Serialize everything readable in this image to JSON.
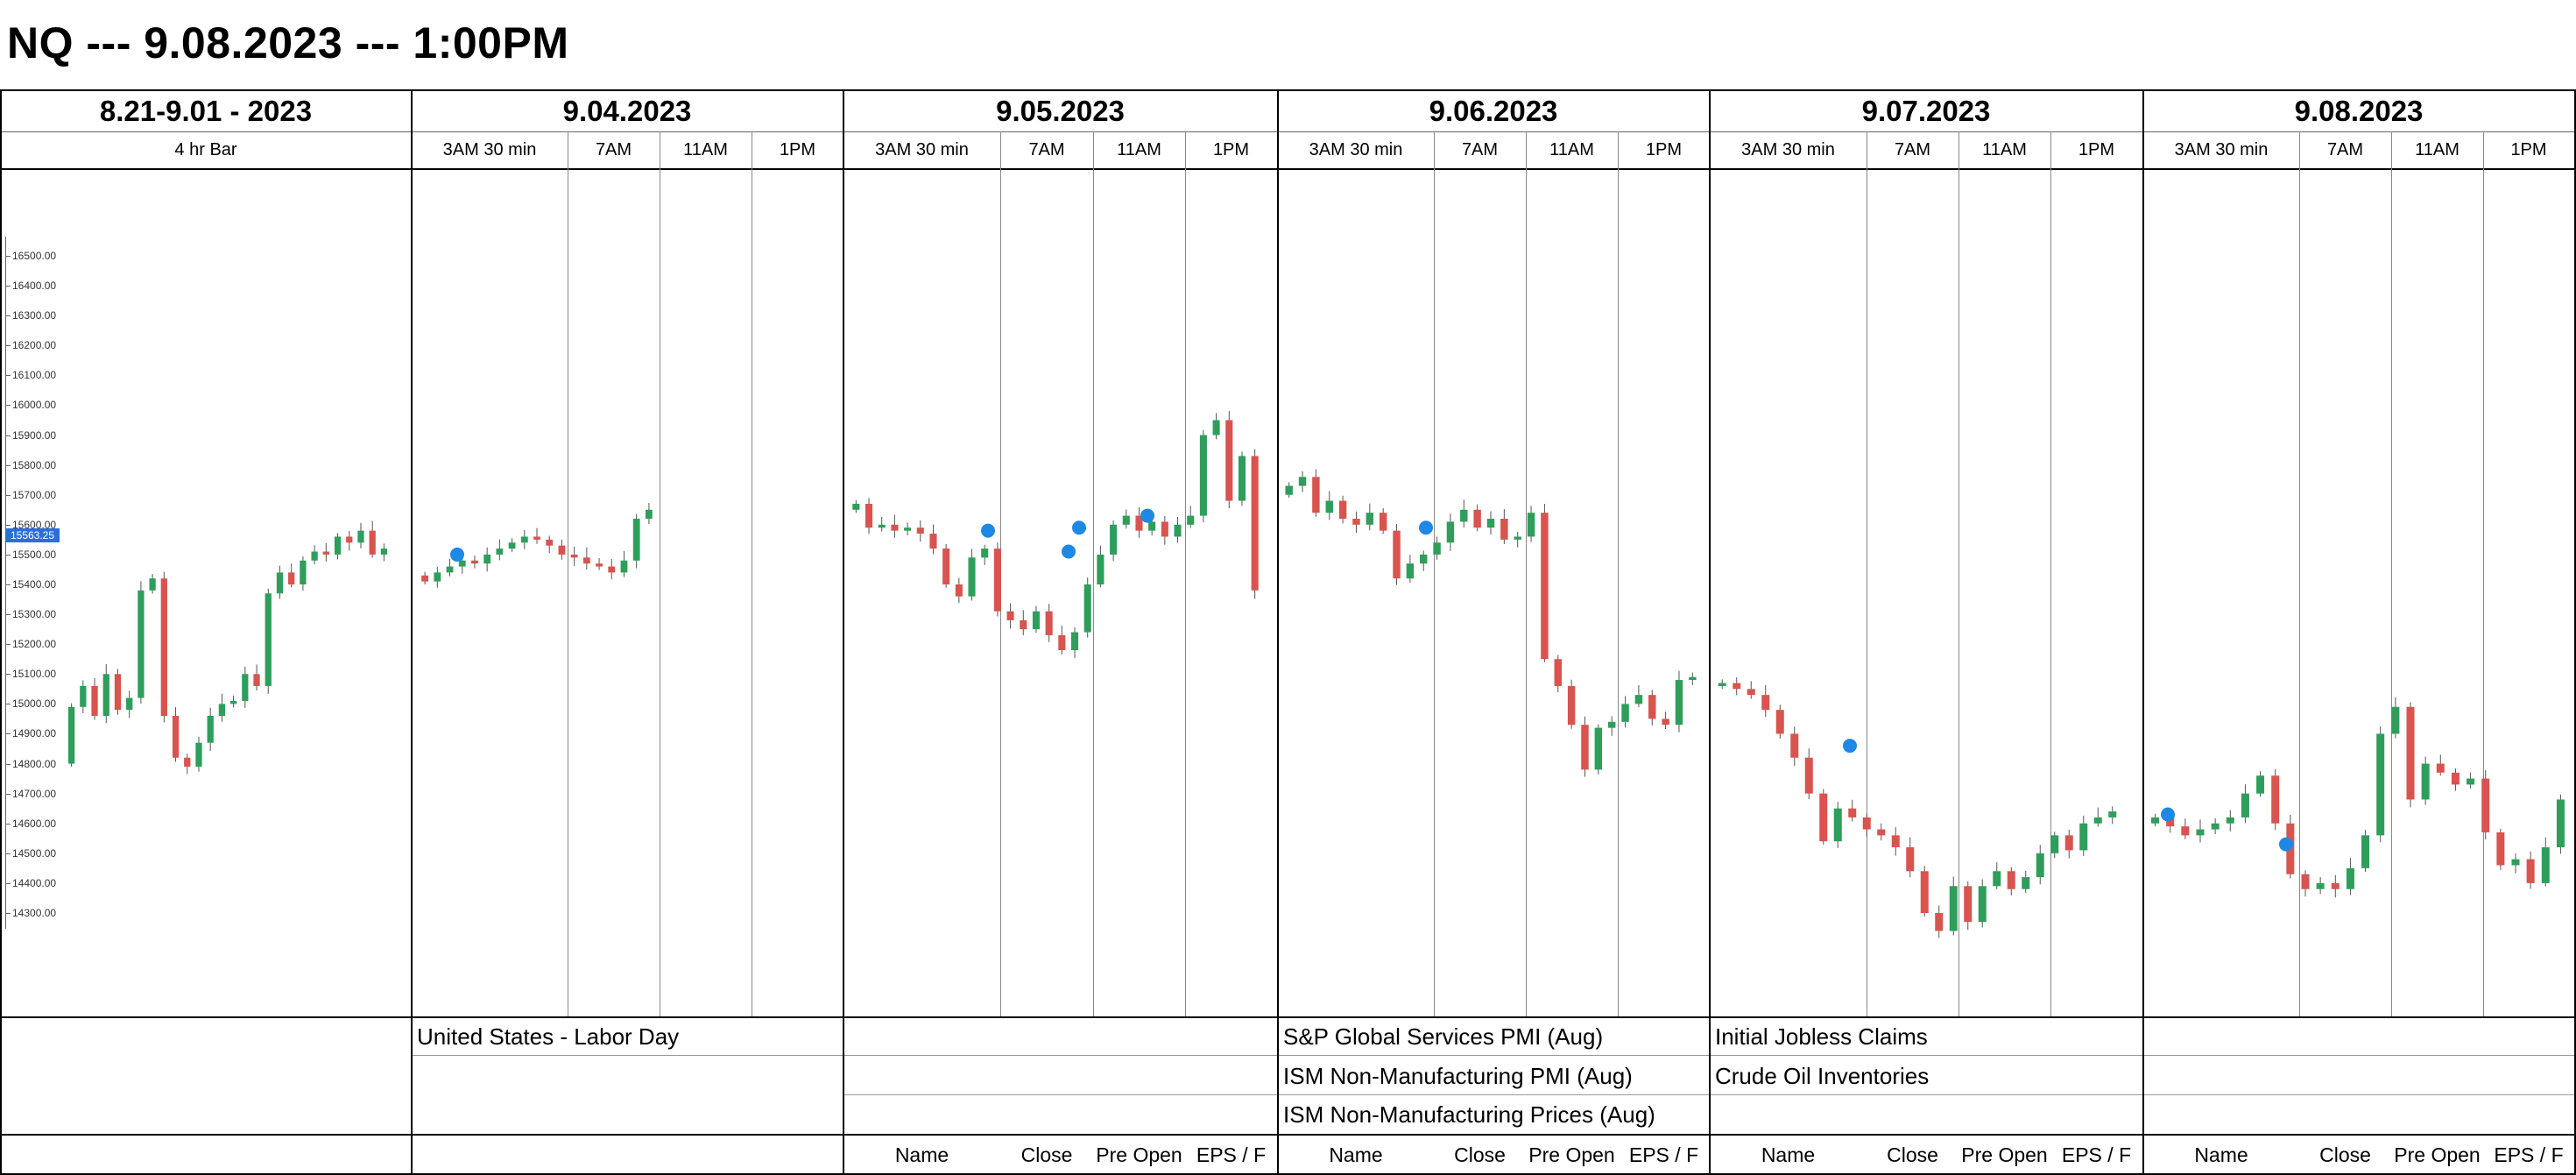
{
  "title": "NQ --- 9.08.2023 --- 1:00PM",
  "days": [
    {
      "label": "8.21-9.01 - 2023",
      "sub": [
        "4 hr Bar"
      ]
    },
    {
      "label": "9.04.2023",
      "sub": [
        "3AM 30 min",
        "7AM",
        "11AM",
        "1PM"
      ]
    },
    {
      "label": "9.05.2023",
      "sub": [
        "3AM 30 min",
        "7AM",
        "11AM",
        "1PM"
      ]
    },
    {
      "label": "9.06.2023",
      "sub": [
        "3AM 30 min",
        "7AM",
        "11AM",
        "1PM"
      ]
    },
    {
      "label": "9.07.2023",
      "sub": [
        "3AM 30 min",
        "7AM",
        "11AM",
        "1PM"
      ]
    },
    {
      "label": "9.08.2023",
      "sub": [
        "3AM 30 min",
        "7AM",
        "11AM",
        "1PM"
      ]
    }
  ],
  "y_axis": {
    "ticks": [
      "16500.00",
      "16400.00",
      "16300.00",
      "16200.00",
      "16100.00",
      "16000.00",
      "15900.00",
      "15800.00",
      "15700.00",
      "15600.00",
      "15500.00",
      "15400.00",
      "15300.00",
      "15200.00",
      "15100.00",
      "15000.00",
      "14900.00",
      "14800.00",
      "14700.00",
      "14600.00",
      "14500.00",
      "14400.00",
      "14300.00"
    ],
    "current_price": "15563.25"
  },
  "events": {
    "d904": [
      "United States - Labor Day"
    ],
    "d906": [
      "S&P Global Services PMI (Aug)",
      "ISM Non-Manufacturing PMI (Aug)",
      "ISM Non-Manufacturing Prices (Aug)"
    ],
    "d907": [
      "Initial Jobless Claims",
      "Crude Oil Inventories"
    ]
  },
  "footer": {
    "d905": [
      "Name",
      "Close",
      "Pre Open",
      "EPS / F"
    ],
    "d906": [
      "Name",
      "Close",
      "Pre Open",
      "EPS / F"
    ],
    "d907": [
      "Name",
      "Close",
      "Pre Open",
      "EPS / F"
    ],
    "d908": [
      "Name",
      "Close",
      "Pre Open",
      "EPS / F"
    ]
  },
  "colors": {
    "up": "#2e9e5b",
    "down": "#d9534f",
    "marker": "#1e88e5",
    "price_tag": "#2b6fd6"
  },
  "chart_data": {
    "type": "candlestick",
    "units": "price",
    "ylim": [
      14250,
      16560
    ],
    "panels": [
      {
        "name": "4 hr Bar",
        "path": [
          14800,
          14990,
          15060,
          14960,
          15100,
          14980,
          15020,
          15380,
          15420,
          14960,
          14820,
          14790,
          14870,
          14960,
          15000,
          15010,
          15100,
          15060,
          15370,
          15440,
          15400,
          15480,
          15510,
          15500,
          15560,
          15540,
          15580,
          15500,
          15520
        ]
      },
      {
        "name": "9.04.2023",
        "path": [
          15430,
          15410,
          15440,
          15460,
          15480,
          15470,
          15500,
          15520,
          15540,
          15560,
          15550,
          15530,
          15500,
          15490,
          15470,
          15460,
          15440,
          15480,
          15620,
          15650
        ]
      },
      {
        "name": "9.05.2023",
        "path": [
          15650,
          15670,
          15590,
          15600,
          15580,
          15590,
          15570,
          15520,
          15400,
          15360,
          15490,
          15520,
          15310,
          15280,
          15250,
          15310,
          15230,
          15180,
          15240,
          15400,
          15500,
          15600,
          15630,
          15580,
          15610,
          15560,
          15600,
          15630,
          15900,
          15950,
          15680,
          15830,
          15380
        ]
      },
      {
        "name": "9.06.2023",
        "path": [
          15700,
          15730,
          15760,
          15640,
          15680,
          15620,
          15600,
          15640,
          15580,
          15420,
          15470,
          15500,
          15540,
          15610,
          15650,
          15590,
          15620,
          15550,
          15560,
          15640,
          15150,
          15060,
          14930,
          14780,
          14920,
          14940,
          15000,
          15030,
          14950,
          14930,
          15080,
          15090
        ]
      },
      {
        "name": "9.07.2023",
        "path": [
          15060,
          15070,
          15050,
          15030,
          14980,
          14900,
          14820,
          14700,
          14540,
          14650,
          14620,
          14580,
          14560,
          14520,
          14440,
          14300,
          14240,
          14390,
          14270,
          14390,
          14440,
          14380,
          14420,
          14500,
          14560,
          14510,
          14600,
          14620,
          14640
        ]
      },
      {
        "name": "9.08.2023",
        "path": [
          14600,
          14620,
          14590,
          14560,
          14580,
          14600,
          14620,
          14700,
          14760,
          14600,
          14430,
          14380,
          14400,
          14380,
          14450,
          14560,
          14900,
          14990,
          14680,
          14800,
          14770,
          14730,
          14750,
          14570,
          14460,
          14480,
          14400,
          14520,
          14680
        ]
      }
    ]
  }
}
